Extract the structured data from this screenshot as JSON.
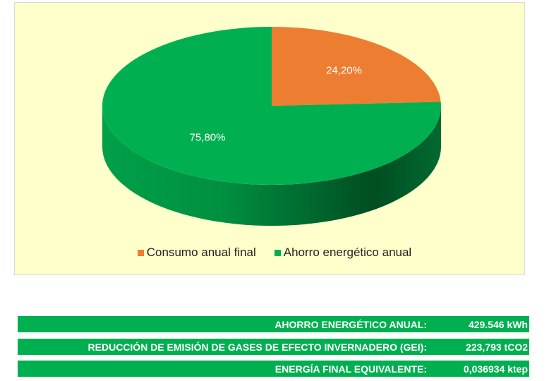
{
  "chart_data": {
    "type": "pie",
    "style": "3d",
    "categories": [
      "Consumo anual final",
      "Ahorro energético anual"
    ],
    "values": [
      24.2,
      75.8
    ],
    "data_labels": [
      "24,20%",
      "75,80%"
    ],
    "colors": [
      "#ed7d31",
      "#00b050"
    ],
    "legend_position": "bottom"
  },
  "summary": [
    {
      "label": "AHORRO ENERGÉTICO ANUAL:",
      "value": "429.546 kWh"
    },
    {
      "label": "REDUCCIÓN DE EMISIÓN DE GASES DE EFECTO INVERNADERO (GEI):",
      "value": "223,793 tCO2"
    },
    {
      "label": "ENERGÍA FINAL EQUIVALENTE:",
      "value": "0,036934 ktep"
    }
  ]
}
